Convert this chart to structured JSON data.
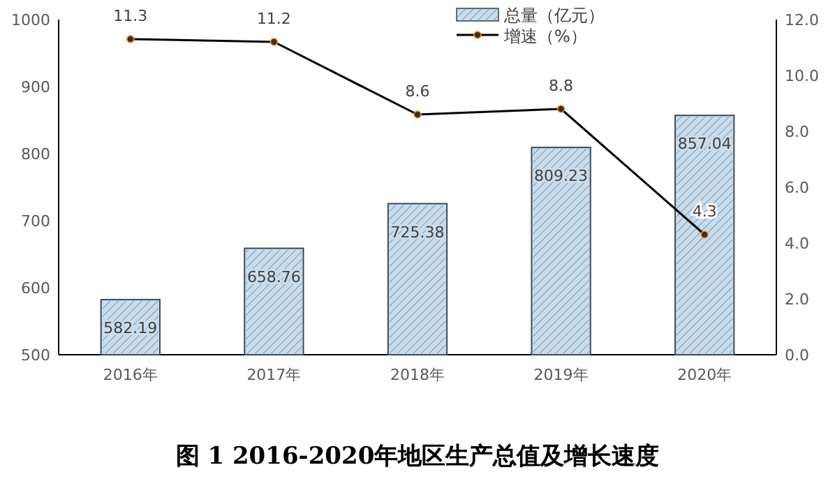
{
  "chart_data": {
    "type": "bar",
    "title": "图 1 2016-2020年地区生产总值及增长速度",
    "categories": [
      "2016年",
      "2017年",
      "2018年",
      "2019年",
      "2020年"
    ],
    "series": [
      {
        "name": "总量（亿元）",
        "color": "#c9dcec",
        "values": [
          582.19,
          658.76,
          725.38,
          809.23,
          857.04
        ]
      },
      {
        "name": "增速（%）",
        "type": "line",
        "axis": "y2",
        "color": "#000000",
        "marker": "circle",
        "values": [
          11.3,
          11.2,
          8.6,
          8.8,
          4.3
        ]
      }
    ],
    "ylim": [
      500,
      1000
    ],
    "yticks": [
      500,
      600,
      700,
      800,
      900,
      1000
    ],
    "y2lim": [
      0,
      12
    ],
    "y2ticks": [
      {
        "value": 0,
        "label": "0.0"
      },
      {
        "value": 2,
        "label": "2.0"
      },
      {
        "value": 4,
        "label": "4.0"
      },
      {
        "value": 6,
        "label": "6.0"
      },
      {
        "value": 8,
        "label": "8.0"
      },
      {
        "value": 10,
        "label": "10.0"
      },
      {
        "value": 12,
        "label": "12.0"
      }
    ],
    "data_labels": true,
    "legend": "top",
    "grid": false
  }
}
